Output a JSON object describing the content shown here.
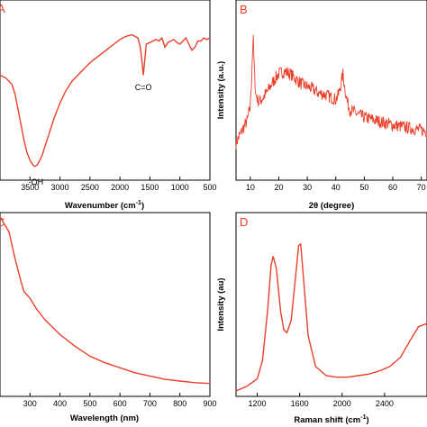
{
  "chart_data": [
    {
      "panel": "A",
      "type": "line",
      "xlabel": "Wavenumber (cm",
      "xlabel_sup": "-1",
      "xlabel_close": ")",
      "ylabel": "",
      "x_reversed": true,
      "xlim": [
        4000,
        500
      ],
      "ylim": [
        0,
        1
      ],
      "xticks": [
        3500,
        3000,
        2500,
        2000,
        1500,
        1000,
        500
      ],
      "color": "#e8402a",
      "x": [
        4000,
        3900,
        3800,
        3750,
        3700,
        3650,
        3600,
        3550,
        3500,
        3450,
        3420,
        3380,
        3350,
        3300,
        3250,
        3200,
        3100,
        3000,
        2900,
        2800,
        2700,
        2600,
        2500,
        2400,
        2300,
        2200,
        2100,
        2000,
        1900,
        1800,
        1700,
        1660,
        1630,
        1610,
        1590,
        1560,
        1500,
        1450,
        1400,
        1350,
        1300,
        1250,
        1200,
        1150,
        1100,
        1050,
        1000,
        950,
        900,
        850,
        800,
        750,
        700,
        650,
        600,
        550,
        500
      ],
      "y": [
        0.62,
        0.6,
        0.56,
        0.5,
        0.4,
        0.3,
        0.2,
        0.12,
        0.07,
        0.04,
        0.03,
        0.04,
        0.06,
        0.1,
        0.16,
        0.22,
        0.34,
        0.44,
        0.52,
        0.58,
        0.62,
        0.66,
        0.7,
        0.73,
        0.76,
        0.79,
        0.82,
        0.85,
        0.87,
        0.88,
        0.86,
        0.8,
        0.7,
        0.62,
        0.7,
        0.82,
        0.83,
        0.84,
        0.85,
        0.84,
        0.86,
        0.8,
        0.83,
        0.84,
        0.85,
        0.83,
        0.82,
        0.84,
        0.86,
        0.82,
        0.78,
        0.8,
        0.84,
        0.84,
        0.86,
        0.85,
        0.86
      ],
      "annotations": [
        {
          "text": "C=O",
          "x": 1610,
          "y": 0.54
        },
        {
          "text": "-OH",
          "x": 3400,
          "y": -0.07
        }
      ]
    },
    {
      "panel": "B",
      "type": "line",
      "xlabel": "2θ (degree)",
      "ylabel": "Intensity (a.u.)",
      "xlim": [
        5,
        72
      ],
      "ylim": [
        0,
        1
      ],
      "xticks": [
        10,
        20,
        30,
        40,
        50,
        60,
        70
      ],
      "color": "#e8402a",
      "x": [
        5,
        7,
        9,
        10,
        10.5,
        11,
        11.5,
        12,
        13,
        14,
        16,
        18,
        20,
        22,
        24,
        26,
        28,
        30,
        32,
        34,
        36,
        38,
        40,
        41,
        42,
        42.5,
        43,
        44,
        45,
        48,
        50,
        55,
        60,
        65,
        70,
        72
      ],
      "y": [
        0.08,
        0.17,
        0.26,
        0.36,
        0.62,
        0.92,
        0.6,
        0.45,
        0.4,
        0.42,
        0.48,
        0.56,
        0.62,
        0.64,
        0.62,
        0.58,
        0.54,
        0.52,
        0.5,
        0.47,
        0.46,
        0.44,
        0.42,
        0.46,
        0.56,
        0.62,
        0.54,
        0.4,
        0.34,
        0.3,
        0.28,
        0.25,
        0.22,
        0.2,
        0.18,
        0.17
      ],
      "noise": 0.05
    },
    {
      "panel": "C",
      "type": "line",
      "xlabel": "Wavelength (nm)",
      "ylabel": "",
      "xlim": [
        200,
        900
      ],
      "ylim": [
        0,
        1
      ],
      "xticks": [
        300,
        400,
        500,
        600,
        700,
        800,
        900
      ],
      "color": "#e8402a",
      "x": [
        200,
        230,
        250,
        270,
        280,
        300,
        320,
        350,
        400,
        450,
        500,
        550,
        600,
        650,
        700,
        750,
        800,
        850,
        900
      ],
      "y": [
        1.05,
        0.96,
        0.8,
        0.66,
        0.6,
        0.56,
        0.5,
        0.43,
        0.34,
        0.27,
        0.21,
        0.17,
        0.14,
        0.11,
        0.09,
        0.07,
        0.06,
        0.05,
        0.045
      ]
    },
    {
      "panel": "D",
      "type": "line",
      "xlabel": "Raman shift (cm",
      "xlabel_sup": "-1",
      "xlabel_close": ")",
      "ylabel": "Intensity (au)",
      "xlim": [
        1000,
        2800
      ],
      "ylim": [
        0,
        1
      ],
      "xticks": [
        1200,
        1600,
        2000,
        2400
      ],
      "color": "#e8402a",
      "x": [
        1000,
        1100,
        1200,
        1250,
        1300,
        1330,
        1350,
        1380,
        1420,
        1450,
        1480,
        1520,
        1560,
        1590,
        1610,
        1640,
        1680,
        1750,
        1850,
        1950,
        2050,
        2150,
        2250,
        2350,
        2450,
        2550,
        2650,
        2720,
        2800
      ],
      "y": [
        0.0,
        0.03,
        0.08,
        0.2,
        0.54,
        0.82,
        0.88,
        0.8,
        0.52,
        0.4,
        0.38,
        0.46,
        0.74,
        0.95,
        0.96,
        0.7,
        0.36,
        0.16,
        0.1,
        0.09,
        0.09,
        0.1,
        0.11,
        0.13,
        0.16,
        0.22,
        0.34,
        0.42,
        0.44
      ]
    }
  ],
  "panels": {
    "a": "A",
    "b": "B",
    "c": "C",
    "d": "D"
  }
}
